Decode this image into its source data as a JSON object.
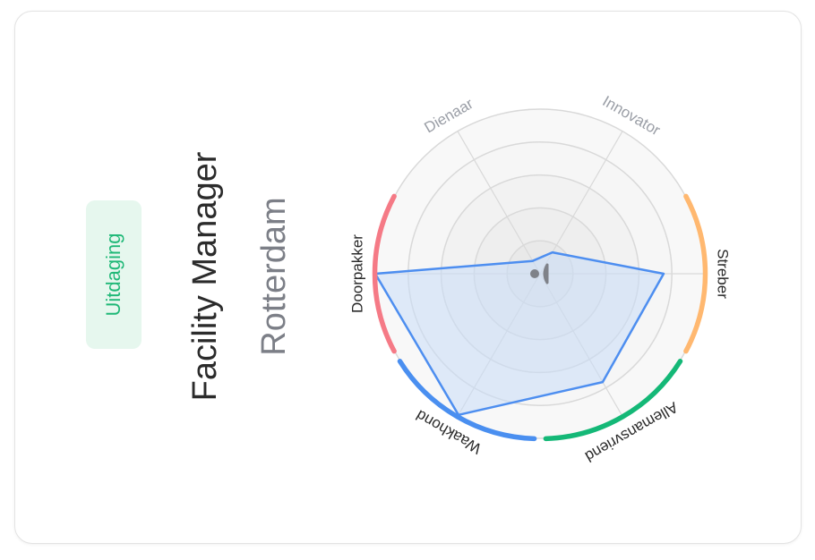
{
  "badge": {
    "label": "Uitdaging"
  },
  "job": {
    "title": "Facility Manager",
    "location": "Rotterdam"
  },
  "chart_data": {
    "type": "radar",
    "axes": [
      "Innovator",
      "Streber",
      "Allemansvriend",
      "Waakhond",
      "Doorpakker",
      "Dienaar"
    ],
    "values": [
      0.15,
      0.75,
      0.76,
      0.99,
      1.0,
      0.09
    ],
    "max": 1,
    "rings": 5,
    "grid": true,
    "muted_axes": [
      "Innovator",
      "Dienaar"
    ],
    "colors": {
      "series_stroke": "#4d8ef0",
      "series_fill": "#c9dcf8",
      "Streber": "#ffb870",
      "Allemansvriend": "#14b877",
      "Waakhond": "#4a8ff0",
      "Doorpakker": "#f57a86",
      "muted_label": "#9a9ea6",
      "label": "#2a2a2a"
    }
  },
  "center_icon": "face-icon"
}
